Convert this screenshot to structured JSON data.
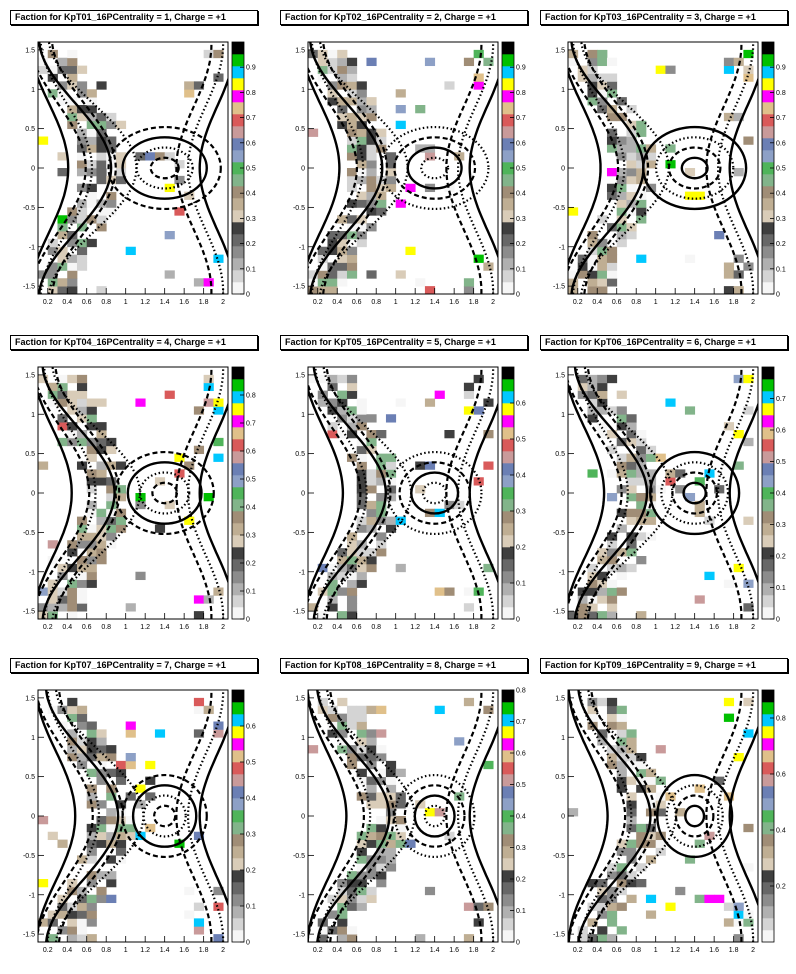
{
  "chart_data": [
    {
      "type": "heatmap",
      "title": "Faction for KpT01_16PCentrality = 1, Charge = +1",
      "xlim": [
        0.1,
        2.05
      ],
      "ylim": [
        -1.6,
        1.6
      ],
      "zlim": [
        0,
        1.0
      ],
      "xticks": [
        "0.2",
        "0.4",
        "0.6",
        "0.8",
        "1",
        "1.2",
        "1.4",
        "1.6",
        "1.8",
        "2"
      ],
      "yticks": [
        "-1.5",
        "-1",
        "-0.5",
        "0",
        "0.5",
        "1",
        "1.5"
      ],
      "zticks": [
        "0",
        "0.1",
        "0.2",
        "0.3",
        "0.4",
        "0.5",
        "0.6",
        "0.7",
        "0.8",
        "0.9"
      ]
    },
    {
      "type": "heatmap",
      "title": "Faction for KpT02_16PCentrality = 2, Charge = +1",
      "xlim": [
        0.1,
        2.05
      ],
      "ylim": [
        -1.6,
        1.6
      ],
      "zlim": [
        0,
        1.0
      ],
      "xticks": [
        "0.2",
        "0.4",
        "0.6",
        "0.8",
        "1",
        "1.2",
        "1.4",
        "1.6",
        "1.8",
        "2"
      ],
      "yticks": [
        "-1.5",
        "-1",
        "-0.5",
        "0",
        "0.5",
        "1",
        "1.5"
      ],
      "zticks": [
        "0",
        "0.1",
        "0.2",
        "0.3",
        "0.4",
        "0.5",
        "0.6",
        "0.7",
        "0.8",
        "0.9"
      ]
    },
    {
      "type": "heatmap",
      "title": "Faction for KpT03_16PCentrality = 3, Charge = +1",
      "xlim": [
        0.1,
        2.05
      ],
      "ylim": [
        -1.6,
        1.6
      ],
      "zlim": [
        0,
        1.0
      ],
      "xticks": [
        "0.2",
        "0.4",
        "0.6",
        "0.8",
        "1",
        "1.2",
        "1.4",
        "1.6",
        "1.8",
        "2"
      ],
      "yticks": [
        "-1.5",
        "-1",
        "-0.5",
        "0",
        "0.5",
        "1",
        "1.5"
      ],
      "zticks": [
        "0",
        "0.1",
        "0.2",
        "0.3",
        "0.4",
        "0.5",
        "0.6",
        "0.7",
        "0.8",
        "0.9"
      ]
    },
    {
      "type": "heatmap",
      "title": "Faction for KpT04_16PCentrality = 4, Charge = +1",
      "xlim": [
        0.1,
        2.05
      ],
      "ylim": [
        -1.6,
        1.6
      ],
      "zlim": [
        0,
        0.9
      ],
      "xticks": [
        "0.2",
        "0.4",
        "0.6",
        "0.8",
        "1",
        "1.2",
        "1.4",
        "1.6",
        "1.8",
        "2"
      ],
      "yticks": [
        "-1.5",
        "-1",
        "-0.5",
        "0",
        "0.5",
        "1",
        "1.5"
      ],
      "zticks": [
        "0",
        "0.1",
        "0.2",
        "0.3",
        "0.4",
        "0.5",
        "0.6",
        "0.7",
        "0.8"
      ]
    },
    {
      "type": "heatmap",
      "title": "Faction for KpT05_16PCentrality = 5, Charge = +1",
      "xlim": [
        0.1,
        2.05
      ],
      "ylim": [
        -1.6,
        1.6
      ],
      "zlim": [
        0,
        0.7
      ],
      "xticks": [
        "0.2",
        "0.4",
        "0.6",
        "0.8",
        "1",
        "1.2",
        "1.4",
        "1.6",
        "1.8",
        "2"
      ],
      "yticks": [
        "-1.5",
        "-1",
        "-0.5",
        "0",
        "0.5",
        "1",
        "1.5"
      ],
      "zticks": [
        "0",
        "0.1",
        "0.2",
        "0.3",
        "0.4",
        "0.5",
        "0.6"
      ]
    },
    {
      "type": "heatmap",
      "title": "Faction for KpT06_16PCentrality = 6, Charge = +1",
      "xlim": [
        0.1,
        2.05
      ],
      "ylim": [
        -1.6,
        1.6
      ],
      "zlim": [
        0,
        0.8
      ],
      "xticks": [
        "0.2",
        "0.4",
        "0.6",
        "0.8",
        "1",
        "1.2",
        "1.4",
        "1.6",
        "1.8",
        "2"
      ],
      "yticks": [
        "-1.5",
        "-1",
        "-0.5",
        "0",
        "0.5",
        "1",
        "1.5"
      ],
      "zticks": [
        "0",
        "0.1",
        "0.2",
        "0.3",
        "0.4",
        "0.5",
        "0.6",
        "0.7"
      ]
    },
    {
      "type": "heatmap",
      "title": "Faction for KpT07_16PCentrality = 7, Charge = +1",
      "xlim": [
        0.1,
        2.05
      ],
      "ylim": [
        -1.6,
        1.6
      ],
      "zlim": [
        0,
        0.7
      ],
      "xticks": [
        "0.2",
        "0.4",
        "0.6",
        "0.8",
        "1",
        "1.2",
        "1.4",
        "1.6",
        "1.8",
        "2"
      ],
      "yticks": [
        "-1.5",
        "-1",
        "-0.5",
        "0",
        "0.5",
        "1",
        "1.5"
      ],
      "zticks": [
        "0",
        "0.1",
        "0.2",
        "0.3",
        "0.4",
        "0.5",
        "0.6"
      ]
    },
    {
      "type": "heatmap",
      "title": "Faction for KpT08_16PCentrality = 8, Charge = +1",
      "xlim": [
        0.1,
        2.05
      ],
      "ylim": [
        -1.6,
        1.6
      ],
      "zlim": [
        0,
        0.8
      ],
      "xticks": [
        "0.2",
        "0.4",
        "0.6",
        "0.8",
        "1",
        "1.2",
        "1.4",
        "1.6",
        "1.8",
        "2"
      ],
      "yticks": [
        "-1.5",
        "-1",
        "-0.5",
        "0",
        "0.5",
        "1",
        "1.5"
      ],
      "zticks": [
        "0",
        "0.1",
        "0.2",
        "0.3",
        "0.4",
        "0.5",
        "0.6",
        "0.7",
        "0.8"
      ]
    },
    {
      "type": "heatmap",
      "title": "Faction for KpT09_16PCentrality = 9, Charge = +1",
      "xlim": [
        0.1,
        2.05
      ],
      "ylim": [
        -1.6,
        1.6
      ],
      "zlim": [
        0,
        0.9
      ],
      "xticks": [
        "0.2",
        "0.4",
        "0.6",
        "0.8",
        "1",
        "1.2",
        "1.4",
        "1.6",
        "1.8",
        "2"
      ],
      "yticks": [
        "-1.5",
        "-1",
        "-0.5",
        "0",
        "0.5",
        "1",
        "1.5"
      ],
      "zticks": [
        "0.2",
        "0.4",
        "0.6",
        "0.8"
      ]
    }
  ]
}
